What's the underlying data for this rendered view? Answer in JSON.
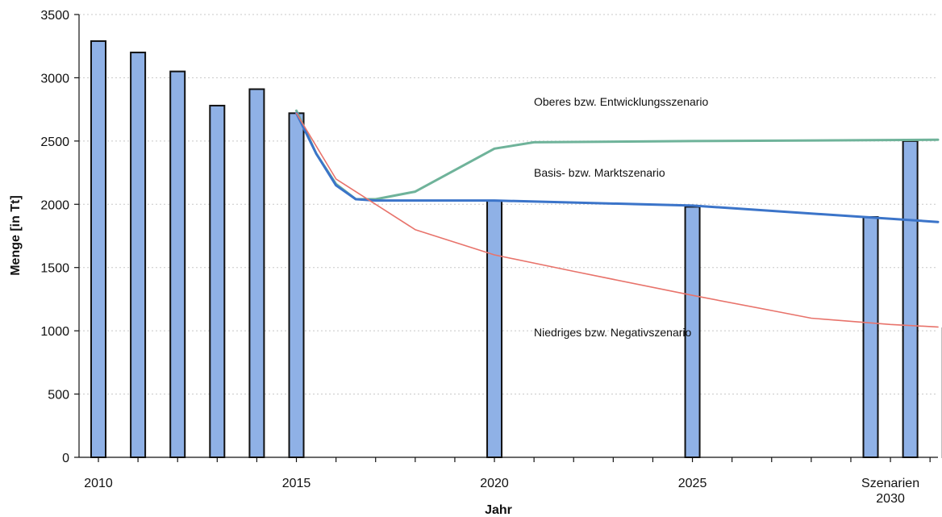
{
  "chart_data": {
    "type": "bar",
    "ylabel": "Menge [in Tt]",
    "xlabel": "Jahr",
    "ylim": [
      0,
      3500
    ],
    "yticks": [
      0,
      500,
      1000,
      1500,
      2000,
      2500,
      3000,
      3500
    ],
    "xlim": [
      2010,
      2031.2
    ],
    "xtick_labels": [
      {
        "x": 2010,
        "label": "2010"
      },
      {
        "x": 2015,
        "label": "2015"
      },
      {
        "x": 2020,
        "label": "2020"
      },
      {
        "x": 2025,
        "label": "2025"
      },
      {
        "x": 2030,
        "label": "2030"
      }
    ],
    "extra_label": {
      "x": 2030,
      "label": "Szenarien"
    },
    "bars": [
      {
        "x": 2010,
        "value": 3290
      },
      {
        "x": 2011,
        "value": 3200
      },
      {
        "x": 2012,
        "value": 3050
      },
      {
        "x": 2013,
        "value": 2780
      },
      {
        "x": 2014,
        "value": 2910
      },
      {
        "x": 2015,
        "value": 2720
      },
      {
        "x": 2020,
        "value": 2030
      },
      {
        "x": 2025,
        "value": 1980
      },
      {
        "x": 2029.5,
        "value": 1900
      },
      {
        "x": 2030.5,
        "value": 2500
      },
      {
        "x": 2031.5,
        "value": 1020
      }
    ],
    "series": [
      {
        "name": "Oberes bzw. Entwicklungsszenario",
        "color": "#6fb39a",
        "points": [
          [
            2015,
            2740
          ],
          [
            2015.5,
            2400
          ],
          [
            2016,
            2160
          ],
          [
            2016.5,
            2040
          ],
          [
            2017,
            2040
          ],
          [
            2018,
            2100
          ],
          [
            2019,
            2270
          ],
          [
            2020,
            2440
          ],
          [
            2021,
            2490
          ],
          [
            2025,
            2500
          ],
          [
            2031.2,
            2510
          ]
        ]
      },
      {
        "name": "Basis- bzw. Marktszenario",
        "color": "#3b74c9",
        "points": [
          [
            2015,
            2720
          ],
          [
            2015.5,
            2400
          ],
          [
            2016,
            2150
          ],
          [
            2016.5,
            2040
          ],
          [
            2017,
            2030
          ],
          [
            2020,
            2030
          ],
          [
            2025,
            1990
          ],
          [
            2031.2,
            1860
          ]
        ]
      },
      {
        "name": "Niedriges bzw. Negativszenario",
        "color": "#e8736b",
        "points": [
          [
            2015,
            2720
          ],
          [
            2016,
            2200
          ],
          [
            2017,
            2000
          ],
          [
            2018,
            1800
          ],
          [
            2020,
            1600
          ],
          [
            2022,
            1470
          ],
          [
            2025,
            1280
          ],
          [
            2027,
            1160
          ],
          [
            2028,
            1100
          ],
          [
            2030,
            1050
          ],
          [
            2031.2,
            1030
          ]
        ]
      }
    ]
  }
}
